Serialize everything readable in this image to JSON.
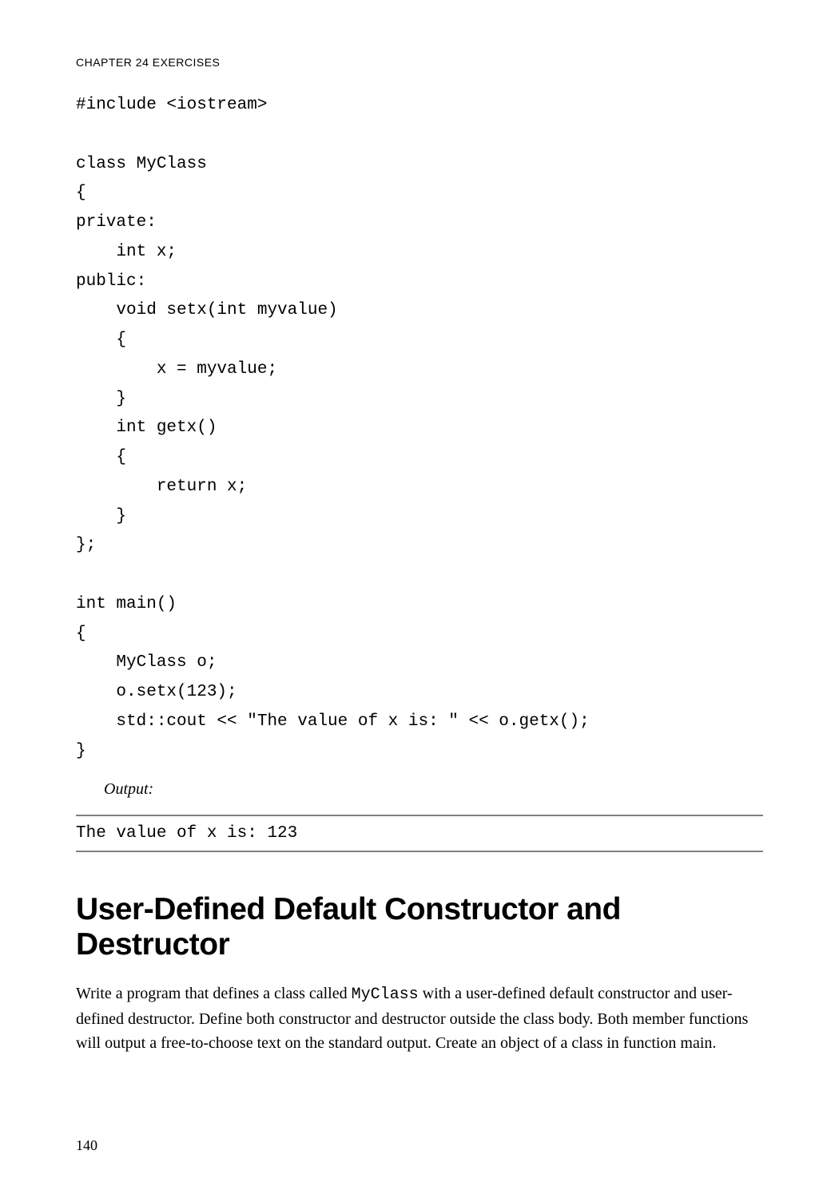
{
  "header": {
    "chapter": "CHAPTER 24",
    "title": "EXERCISES",
    "separator": "    "
  },
  "code": {
    "content": "#include <iostream>\n\nclass MyClass\n{\nprivate:\n    int x;\npublic:\n    void setx(int myvalue)\n    {\n        x = myvalue;\n    }\n    int getx()\n    {\n        return x;\n    }\n};\n\nint main()\n{\n    MyClass o;\n    o.setx(123);\n    std::cout << \"The value of x is: \" << o.getx();\n}"
  },
  "output": {
    "label": "Output:",
    "text": "The value of x is: 123"
  },
  "section": {
    "heading": "User-Defined Default Constructor and Destructor",
    "body_before": "Write a program that defines a class called ",
    "inline_code": "MyClass",
    "body_after": " with a user-defined default constructor and user-defined destructor. Define both constructor and destructor outside the class body. Both member functions will output a free-to-choose text on the standard output. Create an object of a class in function main."
  },
  "page_number": "140"
}
